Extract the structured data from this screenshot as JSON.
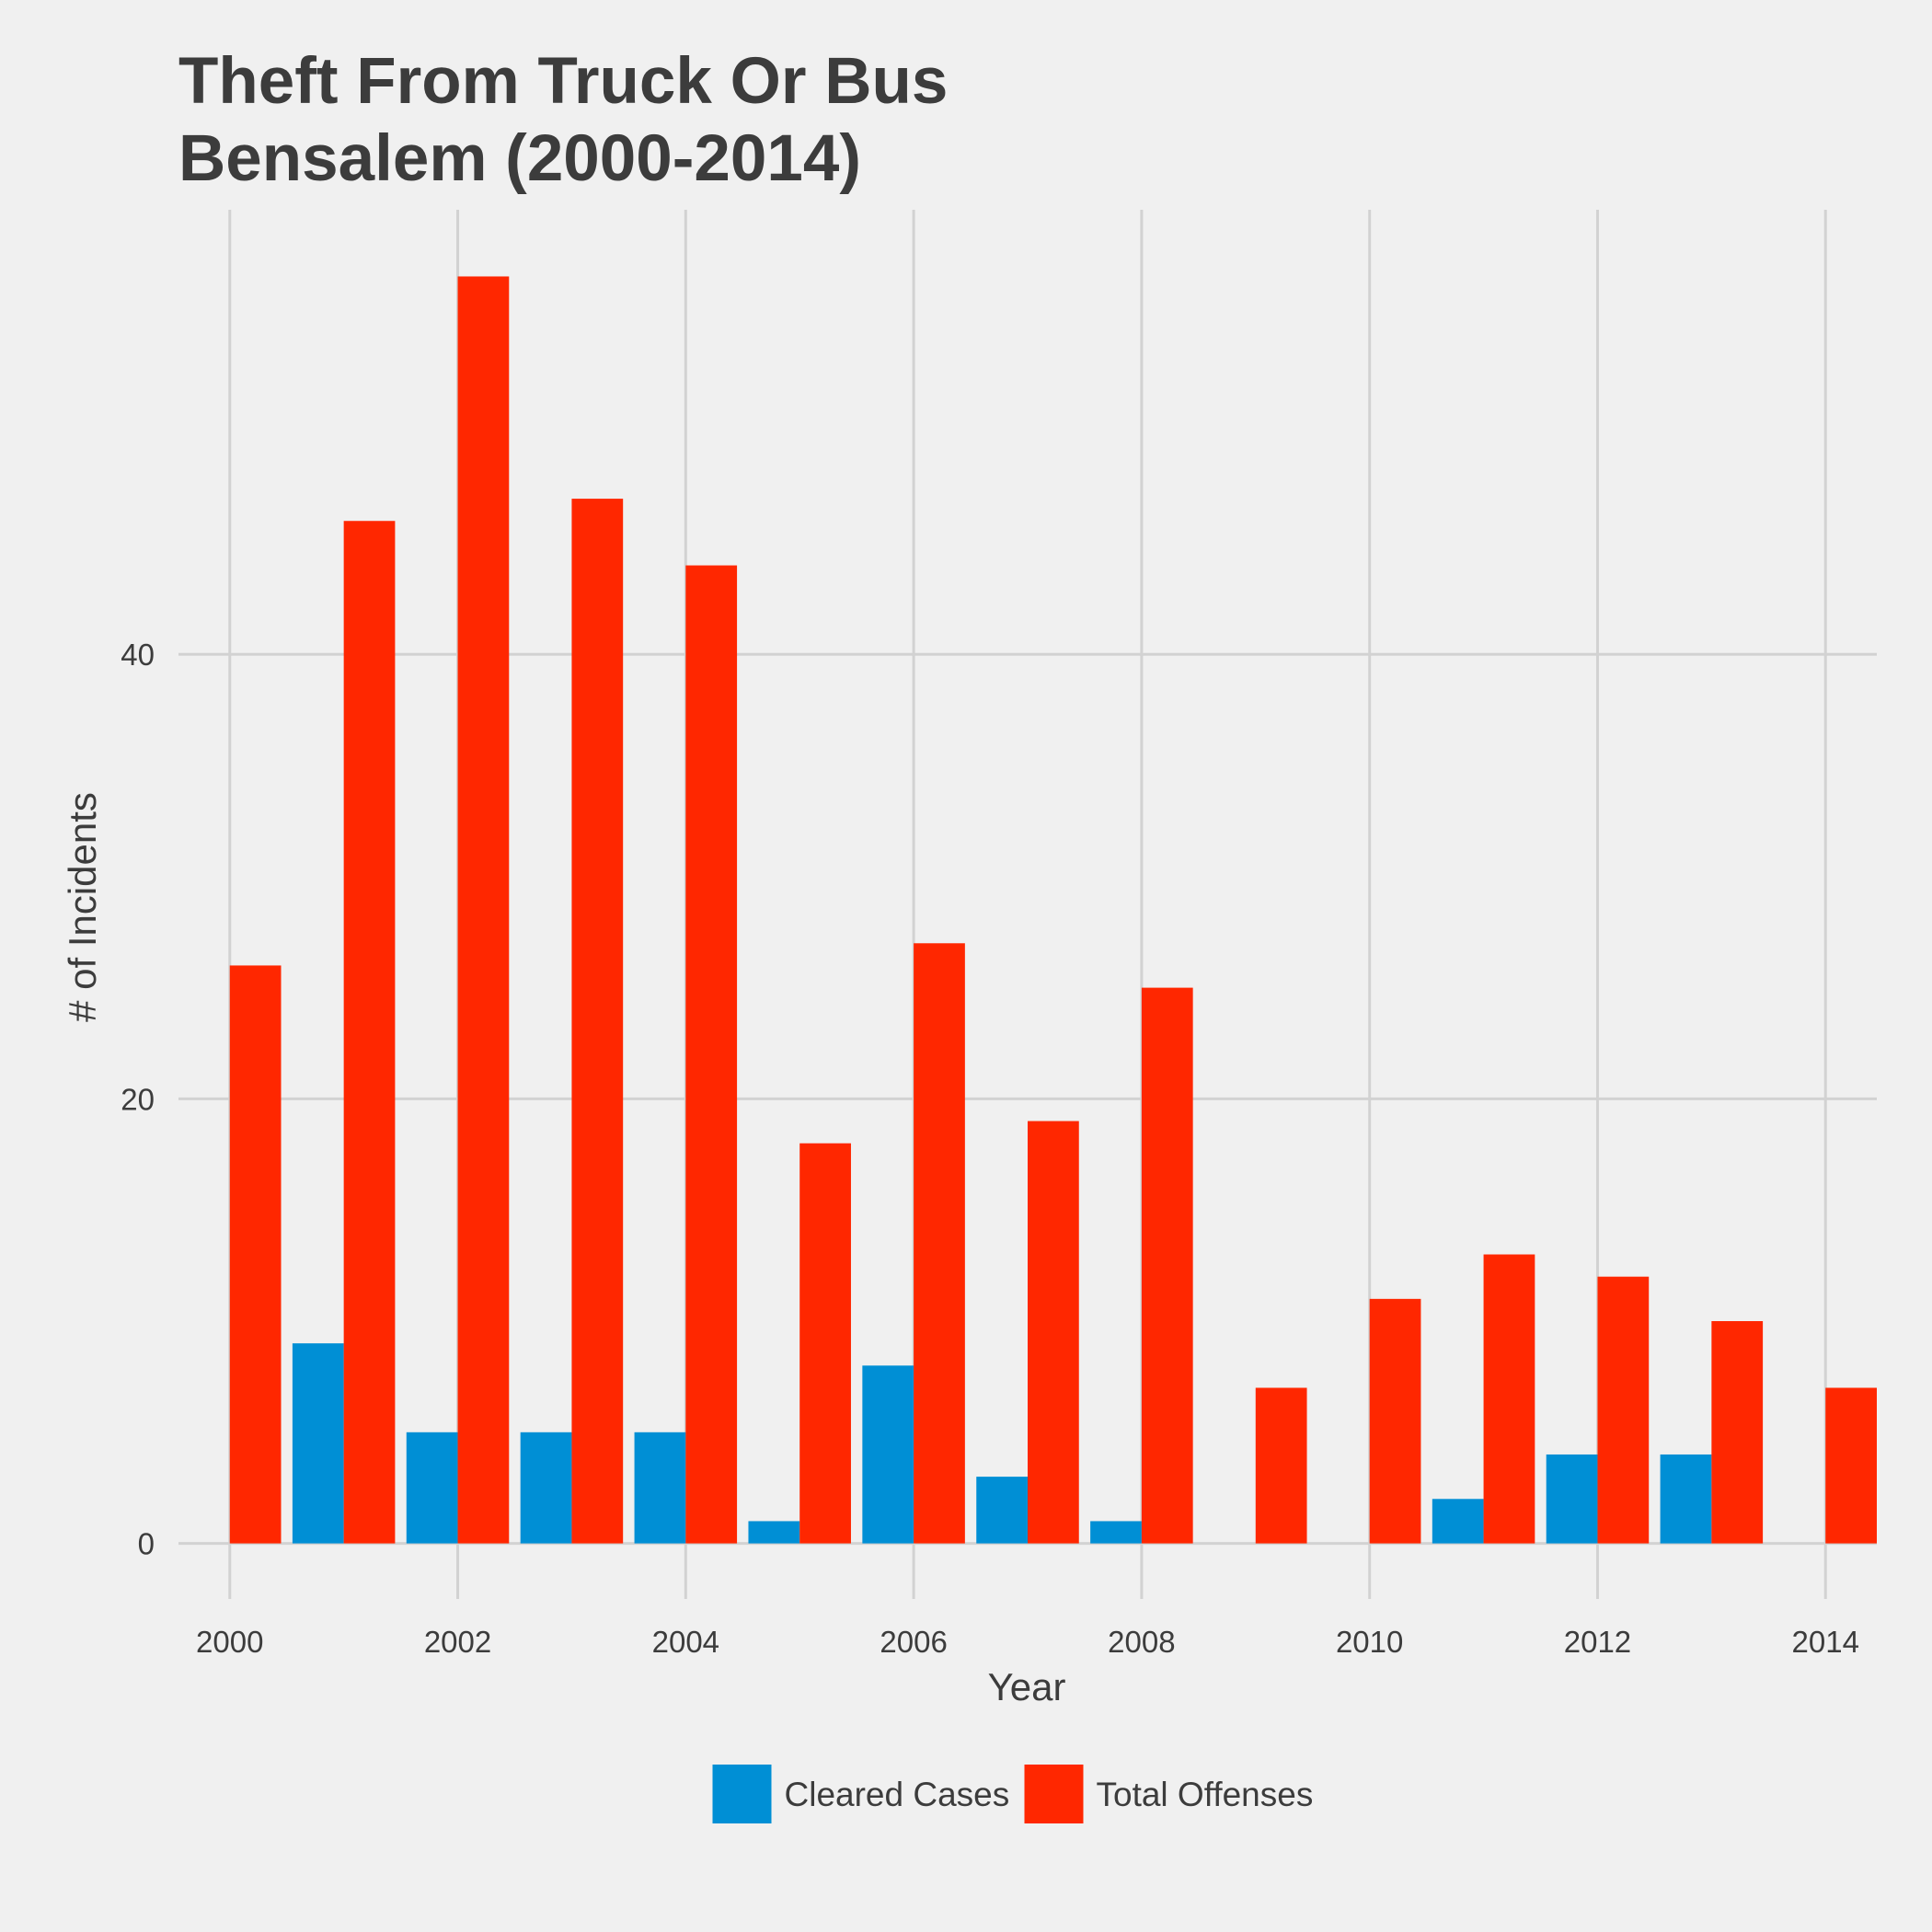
{
  "chart_data": {
    "type": "bar",
    "title": [
      "Theft From Truck Or Bus",
      "Bensalem (2000-2014)"
    ],
    "xlabel": "Year",
    "ylabel": "# of Incidents",
    "x": [
      2000,
      2001,
      2002,
      2003,
      2004,
      2005,
      2006,
      2007,
      2008,
      2009,
      2010,
      2011,
      2012,
      2013,
      2014
    ],
    "x_ticks": [
      2000,
      2002,
      2004,
      2006,
      2008,
      2010,
      2012,
      2014
    ],
    "y_ticks": [
      0,
      20,
      40
    ],
    "xlim": [
      1999.55,
      2014.45
    ],
    "ylim": [
      -2.5,
      60
    ],
    "grid": true,
    "legend_position": "bottom",
    "series": [
      {
        "name": "Cleared Cases",
        "color": "#008fd5",
        "values": [
          0,
          9,
          5,
          5,
          5,
          1,
          8,
          3,
          1,
          0,
          0,
          2,
          4,
          4,
          0
        ]
      },
      {
        "name": "Total Offenses",
        "color": "#ff2700",
        "values": [
          26,
          46,
          57,
          47,
          44,
          18,
          27,
          19,
          25,
          7,
          11,
          13,
          12,
          10,
          7
        ]
      }
    ]
  }
}
